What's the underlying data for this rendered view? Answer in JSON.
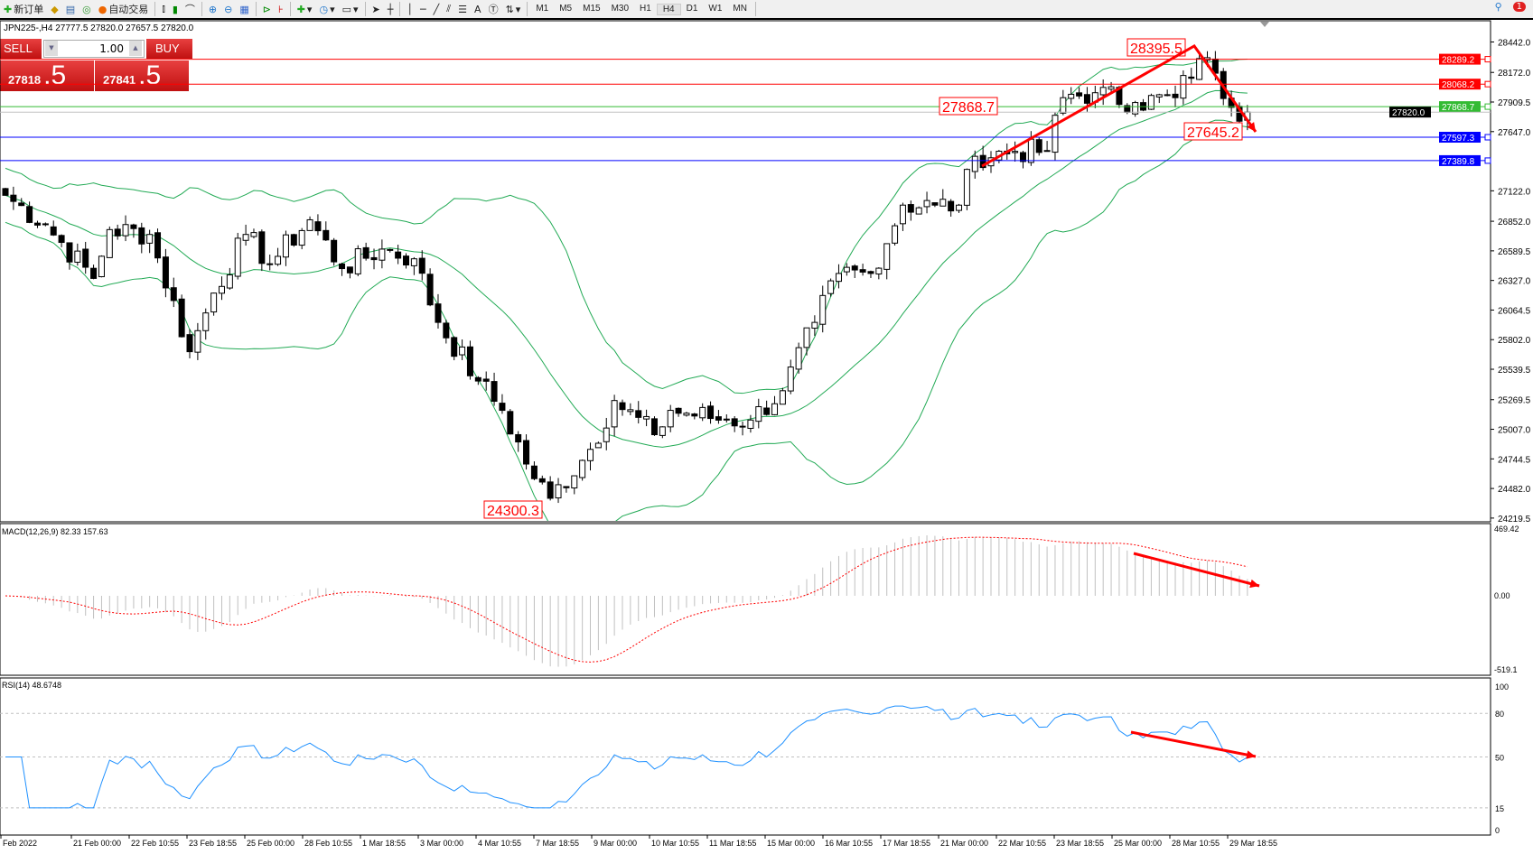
{
  "toolbar": {
    "new_order": "新订单",
    "auto_trade": "自动交易",
    "timeframes": [
      "M1",
      "M5",
      "M15",
      "M30",
      "H1",
      "H4",
      "D1",
      "W1",
      "MN"
    ],
    "active_timeframe": "H4",
    "notifications": "1"
  },
  "chart": {
    "info": "JPN225-,H4  27777.5 27820.0 27657.5 27820.0"
  },
  "trade_panel": {
    "sell_label": "SELL",
    "buy_label": "BUY",
    "lot": "1.00",
    "sell_main": "27818",
    "sell_big": ".5",
    "buy_main": "27841",
    "buy_big": ".5"
  },
  "price_axis": {
    "ticks": [
      "28442.0",
      "28172.0",
      "27909.5",
      "27647.0",
      "27122.0",
      "26852.0",
      "26589.5",
      "26327.0",
      "26064.5",
      "25802.0",
      "25539.5",
      "25269.5",
      "25007.0",
      "24744.5",
      "24482.0",
      "24219.5"
    ]
  },
  "levels": [
    {
      "value": "28289.2",
      "color": "#ff0000"
    },
    {
      "value": "28068.2",
      "color": "#ff0000"
    },
    {
      "value": "27868.7",
      "color": "#33bb33"
    },
    {
      "value": "27820.0",
      "color": "#000000",
      "current": true
    },
    {
      "value": "27597.3",
      "color": "#0000ff"
    },
    {
      "value": "27389.8",
      "color": "#0000ff"
    }
  ],
  "annotations": [
    {
      "text": "28395.5"
    },
    {
      "text": "27868.7"
    },
    {
      "text": "27645.2"
    },
    {
      "text": "24300.3"
    }
  ],
  "price_path": [
    [
      0,
      27082
    ],
    [
      5,
      26822
    ],
    [
      11,
      26345
    ],
    [
      13,
      26778
    ],
    [
      18,
      26735
    ],
    [
      23,
      25695
    ],
    [
      26,
      26215
    ],
    [
      30,
      26735
    ],
    [
      33,
      26475
    ],
    [
      38,
      26865
    ],
    [
      42,
      26432
    ],
    [
      47,
      26605
    ],
    [
      51,
      26519
    ],
    [
      54,
      25955
    ],
    [
      59,
      25435
    ],
    [
      62,
      25175
    ],
    [
      66,
      24569
    ],
    [
      68,
      24395
    ],
    [
      73,
      24829
    ],
    [
      76,
      25262
    ],
    [
      81,
      24959
    ],
    [
      83,
      25175
    ],
    [
      90,
      25089
    ],
    [
      93,
      25089
    ],
    [
      97,
      25349
    ],
    [
      101,
      25955
    ],
    [
      104,
      26389
    ],
    [
      108,
      26389
    ],
    [
      112,
      26995
    ],
    [
      116,
      26995
    ],
    [
      119,
      26995
    ],
    [
      121,
      27428
    ],
    [
      126,
      27472
    ],
    [
      130,
      27472
    ],
    [
      132,
      27948
    ],
    [
      136,
      27992
    ],
    [
      141,
      27905
    ],
    [
      146,
      27948
    ],
    [
      149,
      28295
    ],
    [
      151,
      28165
    ],
    [
      153,
      27862
    ],
    [
      155,
      27820
    ]
  ],
  "macd": {
    "label": "MACD(12,26,9) 82.33 157.63",
    "max": "469.42",
    "zero": "0.00",
    "min": "-519.1"
  },
  "rsi": {
    "label": "RSI(14) 48.6748",
    "ticks": [
      "100",
      "80",
      "50",
      "15",
      "0"
    ]
  },
  "time_axis": [
    "Feb 2022",
    "21 Feb 00:00",
    "22 Feb 10:55",
    "23 Feb 18:55",
    "25 Feb 00:00",
    "28 Feb 10:55",
    "1 Mar 18:55",
    "3 Mar 00:00",
    "4 Mar 10:55",
    "7 Mar 18:55",
    "9 Mar 00:00",
    "10 Mar 10:55",
    "11 Mar 18:55",
    "15 Mar 00:00",
    "16 Mar 10:55",
    "17 Mar 18:55",
    "21 Mar 00:00",
    "22 Mar 10:55",
    "23 Mar 18:55",
    "25 Mar 00:00",
    "28 Mar 10:55",
    "29 Mar 18:55"
  ],
  "colors": {
    "bands": "#22aa55",
    "annotation": "#ff0000",
    "rsi": "#1e90ff",
    "macd_hist": "#c0c0c0",
    "macd_signal": "#ff0000"
  }
}
